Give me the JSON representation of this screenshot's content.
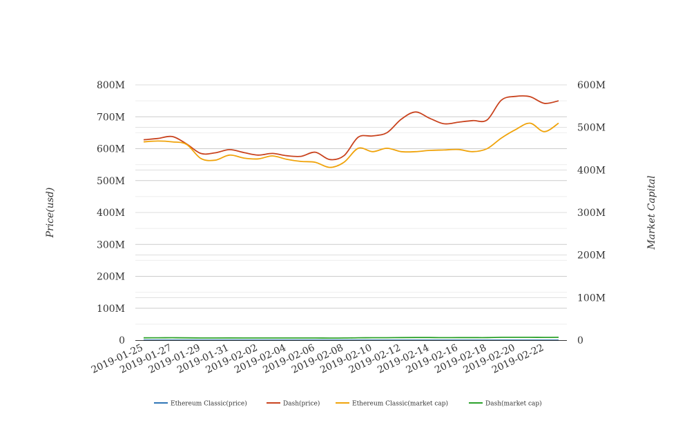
{
  "chart_data": {
    "type": "line",
    "x": [
      "2019-01-25",
      "2019-01-26",
      "2019-01-27",
      "2019-01-28",
      "2019-01-29",
      "2019-01-30",
      "2019-01-31",
      "2019-02-01",
      "2019-02-02",
      "2019-02-03",
      "2019-02-04",
      "2019-02-05",
      "2019-02-06",
      "2019-02-07",
      "2019-02-08",
      "2019-02-09",
      "2019-02-10",
      "2019-02-11",
      "2019-02-12",
      "2019-02-13",
      "2019-02-14",
      "2019-02-15",
      "2019-02-16",
      "2019-02-17",
      "2019-02-18",
      "2019-02-19",
      "2019-02-20",
      "2019-02-21",
      "2019-02-22",
      "2019-02-23"
    ],
    "x_tick_labels": [
      "2019-01-25",
      "2019-01-27",
      "2019-01-29",
      "2019-01-31",
      "2019-02-02",
      "2019-02-04",
      "2019-02-06",
      "2019-02-08",
      "2019-02-10",
      "2019-02-12",
      "2019-02-14",
      "2019-02-16",
      "2019-02-18",
      "2019-02-20",
      "2019-02-22"
    ],
    "y_left": {
      "label": "Price(usd)",
      "ylim": [
        0,
        800000000
      ],
      "ticks": [
        "0",
        "100M",
        "200M",
        "300M",
        "400M",
        "500M",
        "600M",
        "700M",
        "800M"
      ]
    },
    "y_right": {
      "label": "Market Capital",
      "ylim": [
        0,
        600000000
      ],
      "ticks": [
        "0",
        "100M",
        "200M",
        "300M",
        "400M",
        "500M",
        "600M"
      ]
    },
    "grid": true,
    "legend_position": "bottom",
    "series": [
      {
        "name": "Ethereum Classic(price)",
        "axis": "left",
        "color": "#2e75b6",
        "values": [
          4.7,
          4.8,
          4.8,
          4.7,
          4.5,
          4.4,
          4.5,
          4.4,
          4.3,
          4.4,
          4.3,
          4.2,
          4.2,
          4.1,
          4.4,
          4.6,
          4.5,
          4.6,
          4.5,
          4.5,
          4.6,
          4.6,
          4.6,
          4.5,
          4.6,
          4.9,
          5.1,
          5.2,
          5.0,
          5.2
        ]
      },
      {
        "name": "Dash(price)",
        "axis": "left",
        "color": "#c9431e",
        "values": [
          628000000,
          632000000,
          638000000,
          615000000,
          585000000,
          587000000,
          597000000,
          588000000,
          580000000,
          585000000,
          578000000,
          576000000,
          589000000,
          566000000,
          578000000,
          636000000,
          640000000,
          650000000,
          692000000,
          715000000,
          695000000,
          678000000,
          683000000,
          688000000,
          690000000,
          752000000,
          764000000,
          763000000,
          742000000,
          750000000
        ]
      },
      {
        "name": "Ethereum Classic(market cap)",
        "axis": "right",
        "color": "#f0a30a",
        "values": [
          466000000,
          468000000,
          466000000,
          460000000,
          427000000,
          423000000,
          435000000,
          428000000,
          426000000,
          433000000,
          425000000,
          420000000,
          418000000,
          406000000,
          418000000,
          451000000,
          443000000,
          451000000,
          443000000,
          443000000,
          446000000,
          447000000,
          448000000,
          443000000,
          450000000,
          475000000,
          495000000,
          510000000,
          490000000,
          510000000
        ]
      },
      {
        "name": "Dash(market cap)",
        "axis": "right",
        "color": "#2aa12a",
        "values": [
          5400000,
          5500000,
          5600000,
          5400000,
          5100000,
          5100000,
          5200000,
          5100000,
          5100000,
          5100000,
          5100000,
          5000000,
          5100000,
          4900000,
          5000000,
          5500000,
          5600000,
          5700000,
          6000000,
          6200000,
          6100000,
          5900000,
          6000000,
          6000000,
          6000000,
          6600000,
          6700000,
          6700000,
          6500000,
          6600000
        ]
      }
    ]
  }
}
